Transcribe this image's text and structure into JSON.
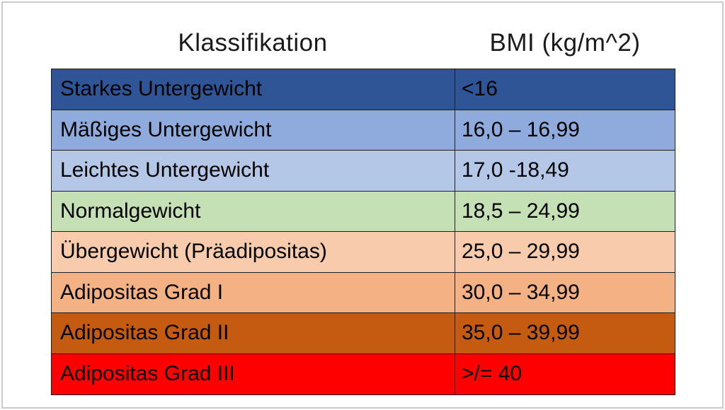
{
  "page": {
    "background": "#ffffff",
    "frame_border_color": "#cbcbcb"
  },
  "chart_data": {
    "type": "table",
    "title": "",
    "columns": [
      "Klassifikation",
      "BMI (kg/m^2)"
    ],
    "border_color": "#1f1f1f",
    "text_color": "#000000",
    "rows": [
      {
        "classification": "Starkes Untergewicht",
        "bmi": "<16",
        "row_color": "#2F5597"
      },
      {
        "classification": "Mäßiges Untergewicht",
        "bmi": "16,0 – 16,99",
        "row_color": "#8FAADC"
      },
      {
        "classification": "Leichtes Untergewicht",
        "bmi": "17,0 -18,49",
        "row_color": "#B4C7E7"
      },
      {
        "classification": "Normalgewicht",
        "bmi": "18,5 – 24,99",
        "row_color": "#C5E0B4"
      },
      {
        "classification": "Übergewicht (Präadipositas)",
        "bmi": "25,0 – 29,99",
        "row_color": "#F8CBAD"
      },
      {
        "classification": "Adipositas Grad I",
        "bmi": "30,0 – 34,99",
        "row_color": "#F4B183"
      },
      {
        "classification": "Adipositas Grad II",
        "bmi": "35,0 – 39,99",
        "row_color": "#C55A11"
      },
      {
        "classification": "Adipositas Grad III",
        "bmi": ">/= 40",
        "row_color": "#FF0000"
      }
    ]
  }
}
